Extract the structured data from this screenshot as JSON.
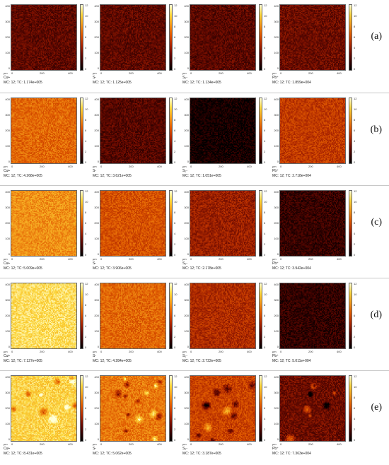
{
  "axes": {
    "y_ticks": [
      "400",
      "300",
      "200",
      "100",
      "0"
    ],
    "x_ticks": [
      "0",
      "200",
      "400"
    ],
    "unit": "µm",
    "colorbar_ticks": [
      "12",
      "10",
      "8",
      "6",
      "4",
      "2",
      "0"
    ]
  },
  "colormap": [
    "#000000",
    "#ffffd8"
  ],
  "rows": [
    {
      "label": "(a)",
      "panels": [
        {
          "species": "Cu+",
          "mc": "MC:",
          "tc": "12; TC: 1.174e+005",
          "level": 0.22,
          "spots": 0
        },
        {
          "species": "S-",
          "mc": "MC:",
          "tc": "12; TC: 1.125e+005",
          "level": 0.22,
          "spots": 0
        },
        {
          "species": "S₂-",
          "mc": "MC:",
          "tc": "12; TC: 1.134e+005",
          "level": 0.21,
          "spots": 0
        },
        {
          "species": "Pb⁺",
          "mc": "MC:",
          "tc": "12; TC: 1.859e+004",
          "level": 0.25,
          "spots": 0
        }
      ]
    },
    {
      "label": "(b)",
      "panels": [
        {
          "species": "Cu+",
          "mc": "MC:",
          "tc": "12; TC: 4.268e+005",
          "level": 0.58,
          "spots": 0
        },
        {
          "species": "S-",
          "mc": "MC:",
          "tc": "12; TC: 3.621e+005",
          "level": 0.2,
          "spots": 0
        },
        {
          "species": "S₂-",
          "mc": "MC:",
          "tc": "12; TC: 1.051e+005",
          "level": 0.05,
          "spots": 0
        },
        {
          "species": "Pb⁺",
          "mc": "MC:",
          "tc": "12; TC: 2.718e+004",
          "level": 0.45,
          "spots": 0
        }
      ]
    },
    {
      "label": "(c)",
      "panels": [
        {
          "species": "Cu+",
          "mc": "MC:",
          "tc": "12; TC: 5.009e+005",
          "level": 0.68,
          "spots": 0
        },
        {
          "species": "S-",
          "mc": "MC:",
          "tc": "12; TC: 3.906e+005",
          "level": 0.52,
          "spots": 0
        },
        {
          "species": "S₂-",
          "mc": "MC:",
          "tc": "12; TC: 2.178e+005",
          "level": 0.35,
          "spots": 0
        },
        {
          "species": "Pb⁺",
          "mc": "MC:",
          "tc": "12; TC: 3.942e+004",
          "level": 0.13,
          "spots": 0
        }
      ]
    },
    {
      "label": "(d)",
      "panels": [
        {
          "species": "Cu+",
          "mc": "MC:",
          "tc": "12; TC: 7.127e+005",
          "level": 0.88,
          "spots": 0
        },
        {
          "species": "S-",
          "mc": "MC:",
          "tc": "12; TC: 4.284e+005",
          "level": 0.58,
          "spots": 0
        },
        {
          "species": "S₂-",
          "mc": "MC:",
          "tc": "12; TC: 2.722e+005",
          "level": 0.4,
          "spots": 0
        },
        {
          "species": "Pb⁺",
          "mc": "MC:",
          "tc": "12; TC: 5.011e+004",
          "level": 0.12,
          "spots": 0
        }
      ]
    },
    {
      "label": "(e)",
      "panels": [
        {
          "species": "Cu+",
          "mc": "MC:",
          "tc": "12; TC: 8.431e+005",
          "level": 0.85,
          "spots": 10
        },
        {
          "species": "S-",
          "mc": "MC:",
          "tc": "12; TC: 5.062e+005",
          "level": 0.62,
          "spots": 14
        },
        {
          "species": "S₂-",
          "mc": "MC:",
          "tc": "12; TC: 3.187e+005",
          "level": 0.48,
          "spots": 12
        },
        {
          "species": "Pb⁺",
          "mc": "MC:",
          "tc": "12; TC: 7.363e+004",
          "level": 0.25,
          "spots": 8
        }
      ]
    }
  ]
}
